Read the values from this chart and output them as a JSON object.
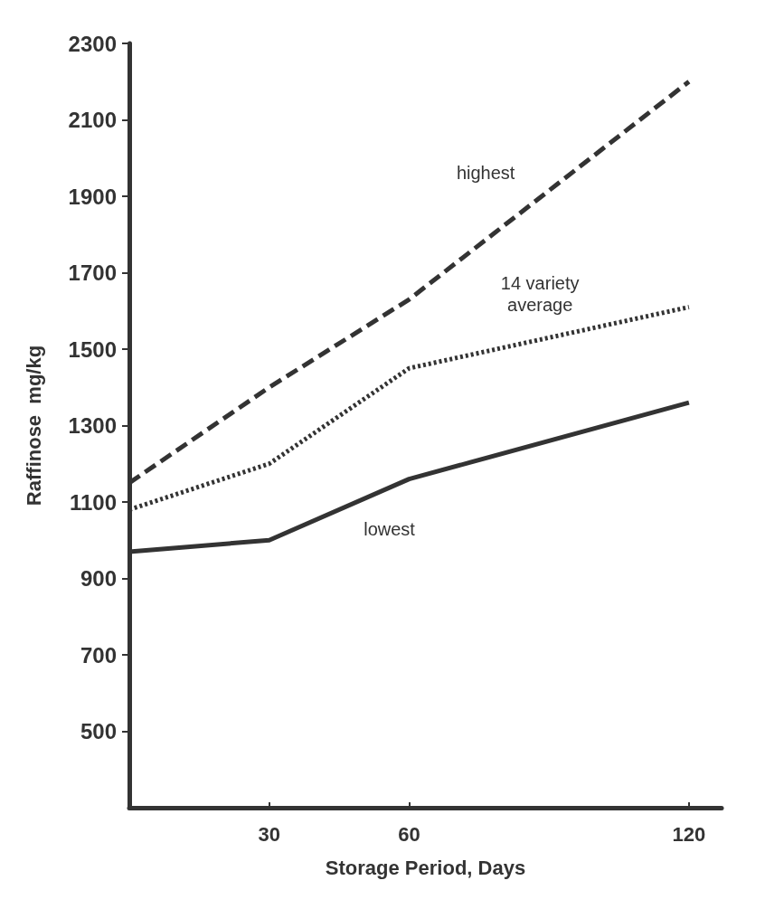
{
  "chart_data": {
    "type": "line",
    "xlabel": "Storage Period, Days",
    "ylabel": "Raffinose  mg/kg",
    "x": [
      0,
      30,
      60,
      120
    ],
    "series": [
      {
        "name": "highest",
        "color": "#333333",
        "line_style": "dashed",
        "values": [
          1150,
          1400,
          1630,
          2200
        ]
      },
      {
        "name": "14 variety\naverage",
        "color": "#333333",
        "line_style": "dotted",
        "values": [
          1080,
          1200,
          1450,
          1610
        ]
      },
      {
        "name": "lowest",
        "color": "#333333",
        "line_style": "solid",
        "values": [
          970,
          1000,
          1160,
          1360
        ]
      }
    ],
    "xlim": [
      0,
      127
    ],
    "xticks": [
      30,
      60,
      120
    ],
    "ylim": [
      300,
      2300
    ],
    "yticks": [
      500,
      700,
      900,
      1100,
      1300,
      1500,
      1700,
      1900,
      2100,
      2300
    ],
    "grid": false,
    "legend": false,
    "marker": "none"
  }
}
